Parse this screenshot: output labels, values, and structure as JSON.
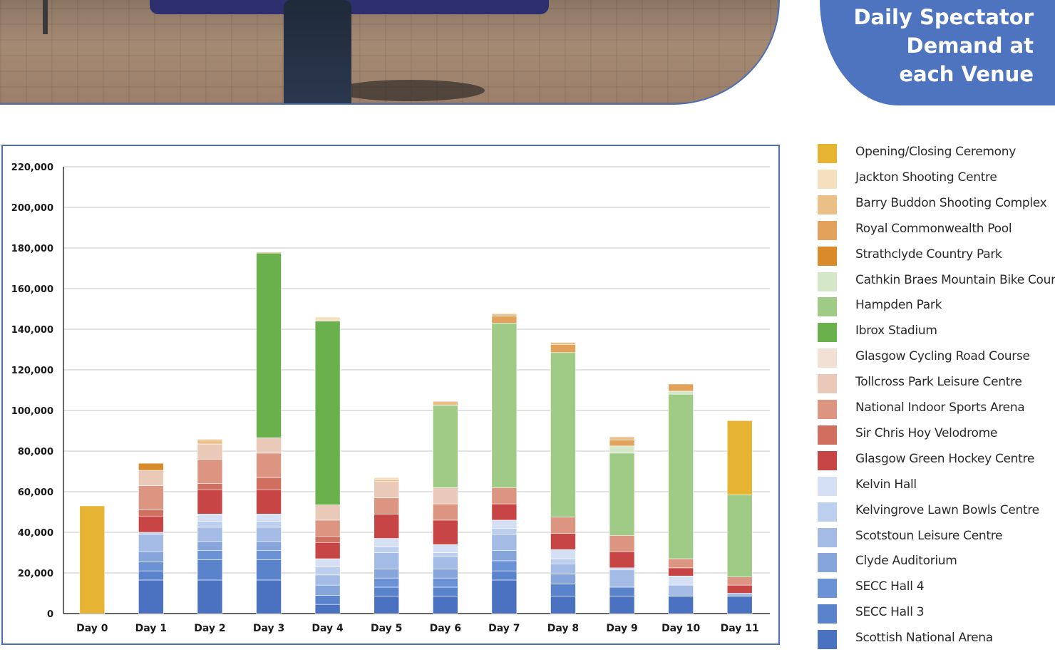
{
  "header": {
    "title_line1": "Daily Spectator",
    "title_line2": "Demand at",
    "title_line3": "each Venue"
  },
  "chart_data": {
    "type": "bar",
    "stacked": true,
    "categories": [
      "Day 0",
      "Day 1",
      "Day 2",
      "Day 3",
      "Day 4",
      "Day 5",
      "Day 6",
      "Day 7",
      "Day 8",
      "Day 9",
      "Day 10",
      "Day 11"
    ],
    "ylim": [
      0,
      220000
    ],
    "yticks": [
      0,
      20000,
      40000,
      60000,
      80000,
      100000,
      120000,
      140000,
      160000,
      180000,
      200000,
      220000
    ],
    "ytick_labels": [
      "0",
      "20,000",
      "40,000",
      "60,000",
      "80,000",
      "100,000",
      "120,000",
      "140,000",
      "160,000",
      "180,000",
      "200,000",
      "220,000"
    ],
    "grid": true,
    "legend_position": "right",
    "series": [
      {
        "name": "Scottish National Arena",
        "color": "#4a72c0",
        "values": [
          0,
          16500,
          16500,
          16500,
          4500,
          8500,
          8500,
          16500,
          8500,
          8500,
          8500,
          8500
        ]
      },
      {
        "name": "SECC Hall 3",
        "color": "#5a83cc",
        "values": [
          0,
          4500,
          10000,
          10000,
          4500,
          4500,
          4500,
          4500,
          6000,
          4500,
          0,
          0
        ]
      },
      {
        "name": "SECC Hall 4",
        "color": "#6b92d4",
        "values": [
          0,
          4500,
          4500,
          4500,
          0,
          4500,
          4500,
          5000,
          0,
          0,
          0,
          0
        ]
      },
      {
        "name": "Clyde Auditorium",
        "color": "#86a5db",
        "values": [
          0,
          5000,
          4500,
          4500,
          5000,
          4500,
          4500,
          5000,
          5000,
          0,
          0,
          0
        ]
      },
      {
        "name": "Scotstoun Leisure Centre",
        "color": "#a4bce5",
        "values": [
          0,
          8500,
          7000,
          7000,
          5000,
          8000,
          6000,
          8000,
          5000,
          8500,
          5500,
          1500
        ]
      },
      {
        "name": "Kelvingrove Lawn Bowls Centre",
        "color": "#bccfee",
        "values": [
          0,
          1000,
          3000,
          3000,
          4000,
          3000,
          2000,
          3000,
          2500,
          1000,
          0,
          0
        ]
      },
      {
        "name": "Kelvin Hall",
        "color": "#d5e0f5",
        "values": [
          0,
          0,
          3500,
          3500,
          4000,
          4000,
          4000,
          4000,
          4500,
          0,
          4500,
          0
        ]
      },
      {
        "name": "Glasgow Green Hockey Centre",
        "color": "#c84545",
        "values": [
          0,
          8000,
          12000,
          12000,
          8000,
          12000,
          12000,
          8000,
          8000,
          8000,
          4000,
          4000
        ]
      },
      {
        "name": "Sir Chris Hoy Velodrome",
        "color": "#d06e5f",
        "values": [
          0,
          3000,
          3000,
          6000,
          3000,
          0,
          0,
          0,
          0,
          0,
          0,
          0
        ]
      },
      {
        "name": "National Indoor Sports Arena",
        "color": "#db9580",
        "values": [
          0,
          12000,
          12000,
          12000,
          8000,
          8000,
          8000,
          8000,
          8000,
          8000,
          4500,
          4000
        ]
      },
      {
        "name": "Tollcross Park Leisure Centre",
        "color": "#ebc9b8",
        "values": [
          0,
          7500,
          7500,
          7500,
          7500,
          8000,
          8000,
          0,
          0,
          0,
          0,
          0
        ]
      },
      {
        "name": "Glasgow Cycling Road Course",
        "color": "#f2e0d5",
        "values": [
          0,
          0,
          0,
          0,
          0,
          0,
          0,
          0,
          0,
          0,
          0,
          0
        ]
      },
      {
        "name": "Ibrox Stadium",
        "color": "#6ab04c",
        "values": [
          0,
          0,
          0,
          91000,
          90500,
          0,
          0,
          0,
          0,
          0,
          0,
          0
        ]
      },
      {
        "name": "Hampden Park",
        "color": "#9fcb87",
        "values": [
          0,
          0,
          0,
          0,
          0,
          0,
          40500,
          81000,
          81000,
          40500,
          81000,
          40500
        ]
      },
      {
        "name": "Cathkin Braes Mountain Bike Course",
        "color": "#d4e8c9",
        "values": [
          0,
          0,
          0,
          0,
          0,
          0,
          0,
          0,
          0,
          3500,
          1500,
          0
        ]
      },
      {
        "name": "Strathclyde Country Park",
        "color": "#d98a2b",
        "values": [
          0,
          3500,
          0,
          0,
          0,
          0,
          0,
          0,
          0,
          0,
          0,
          0
        ]
      },
      {
        "name": "Royal Commonwealth Pool",
        "color": "#e3a25c",
        "values": [
          0,
          0,
          0,
          0,
          0,
          0,
          0,
          3500,
          4000,
          3000,
          3500,
          0
        ]
      },
      {
        "name": "Barry Buddon Shooting Complex",
        "color": "#eac088",
        "values": [
          0,
          0,
          2000,
          500,
          500,
          1000,
          2000,
          1000,
          1000,
          1500,
          0,
          0
        ]
      },
      {
        "name": "Jackton Shooting Centre",
        "color": "#f4dfbf",
        "values": [
          0,
          0,
          500,
          0,
          1500,
          1000,
          0,
          500,
          0,
          0,
          0,
          0
        ]
      },
      {
        "name": "Opening/Closing Ceremony",
        "color": "#e6b332",
        "values": [
          53000,
          0,
          0,
          0,
          0,
          0,
          0,
          0,
          0,
          0,
          0,
          36500
        ]
      }
    ]
  },
  "legend": [
    {
      "label": "Opening/Closing Ceremony",
      "color": "#e6b332"
    },
    {
      "label": "Jackton Shooting Centre",
      "color": "#f4dfbf"
    },
    {
      "label": "Barry Buddon Shooting Complex",
      "color": "#eac088"
    },
    {
      "label": "Royal Commonwealth Pool",
      "color": "#e3a25c"
    },
    {
      "label": "Strathclyde Country Park",
      "color": "#d98a2b"
    },
    {
      "label": "Cathkin Braes Mountain Bike Course",
      "color": "#d4e8c9"
    },
    {
      "label": "Hampden Park",
      "color": "#9fcb87"
    },
    {
      "label": "Ibrox Stadium",
      "color": "#6ab04c"
    },
    {
      "label": "Glasgow Cycling Road Course",
      "color": "#f2e0d5"
    },
    {
      "label": "Tollcross Park Leisure Centre",
      "color": "#ebc9b8"
    },
    {
      "label": "National Indoor Sports Arena",
      "color": "#db9580"
    },
    {
      "label": "Sir Chris Hoy Velodrome",
      "color": "#d06e5f"
    },
    {
      "label": "Glasgow Green Hockey Centre",
      "color": "#c84545"
    },
    {
      "label": "Kelvin Hall",
      "color": "#d5e0f5"
    },
    {
      "label": "Kelvingrove Lawn Bowls Centre",
      "color": "#bccfee"
    },
    {
      "label": "Scotstoun Leisure Centre",
      "color": "#a4bce5"
    },
    {
      "label": "Clyde Auditorium",
      "color": "#86a5db"
    },
    {
      "label": "SECC Hall 4",
      "color": "#6b92d4"
    },
    {
      "label": "SECC Hall 3",
      "color": "#5a83cc"
    },
    {
      "label": "Scottish National Arena",
      "color": "#4a72c0"
    }
  ]
}
